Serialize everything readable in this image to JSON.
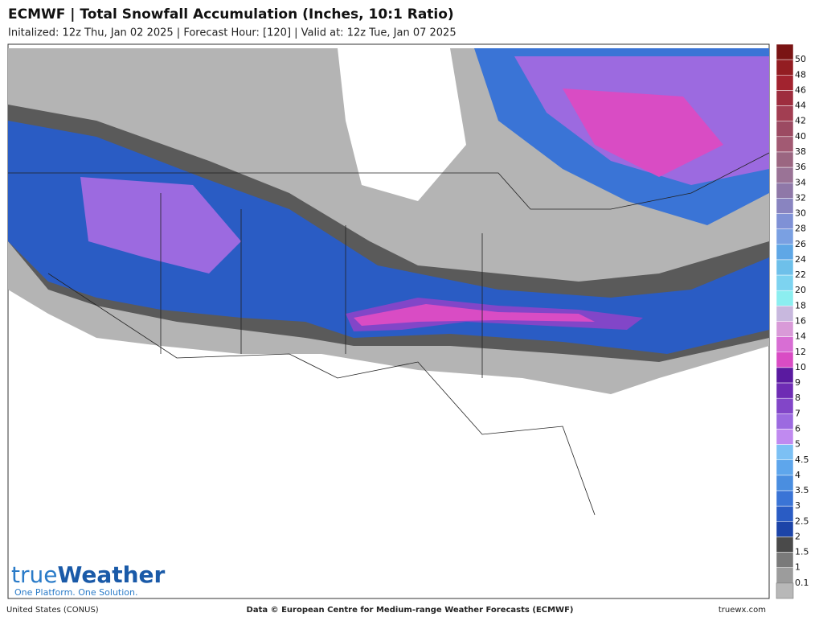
{
  "header": {
    "title": "ECMWF | Total Snowfall Accumulation (Inches, 10:1 Ratio)",
    "subtitle": "Initalized: 12z Thu, Jan 02 2025  | Forecast Hour: [120]  | Valid at: 12z Tue, Jan 07 2025"
  },
  "legend": {
    "items": [
      {
        "label": "50",
        "color": "#7a1414"
      },
      {
        "label": "48",
        "color": "#931d22"
      },
      {
        "label": "46",
        "color": "#a2232f"
      },
      {
        "label": "44",
        "color": "#9e2d3e"
      },
      {
        "label": "42",
        "color": "#a23e52"
      },
      {
        "label": "40",
        "color": "#9c4a62"
      },
      {
        "label": "38",
        "color": "#a25a73"
      },
      {
        "label": "36",
        "color": "#9b6681"
      },
      {
        "label": "34",
        "color": "#9a7396"
      },
      {
        "label": "32",
        "color": "#8f78a8"
      },
      {
        "label": "30",
        "color": "#8984c0"
      },
      {
        "label": "28",
        "color": "#7f91d6"
      },
      {
        "label": "26",
        "color": "#7aa0e2"
      },
      {
        "label": "24",
        "color": "#5fa7e6"
      },
      {
        "label": "22",
        "color": "#6ec0ea"
      },
      {
        "label": "20",
        "color": "#7dd3f0"
      },
      {
        "label": "18",
        "color": "#8ceef0"
      },
      {
        "label": "16",
        "color": "#c8b8de"
      },
      {
        "label": "14",
        "color": "#d99ad8"
      },
      {
        "label": "12",
        "color": "#d86ed4"
      },
      {
        "label": "10",
        "color": "#d94cc4"
      },
      {
        "label": "9",
        "color": "#5a1aa0"
      },
      {
        "label": "8",
        "color": "#6e2cb4"
      },
      {
        "label": "7",
        "color": "#8246c8"
      },
      {
        "label": "6",
        "color": "#9c6ae0"
      },
      {
        "label": "5",
        "color": "#c08af0"
      },
      {
        "label": "4.5",
        "color": "#7cc0f4"
      },
      {
        "label": "4",
        "color": "#5ea6ec"
      },
      {
        "label": "3.5",
        "color": "#4a8ee0"
      },
      {
        "label": "3",
        "color": "#3a74d6"
      },
      {
        "label": "2.5",
        "color": "#2a5cc4"
      },
      {
        "label": "2",
        "color": "#1c44a8"
      },
      {
        "label": "1.5",
        "color": "#4a4a4a"
      },
      {
        "label": "1",
        "color": "#7a7a7a"
      },
      {
        "label": "0.1",
        "color": "#9c9c9c"
      }
    ],
    "below_color": "#b8b8b8"
  },
  "logo": {
    "brand_a": "true",
    "brand_b": "Weather",
    "tagline": "One Platform. One Solution."
  },
  "footer": {
    "left": "United States (CONUS)",
    "center": "Data © European Centre for Medium-range Weather Forecasts (ECMWF)",
    "right": "truewx.com"
  }
}
